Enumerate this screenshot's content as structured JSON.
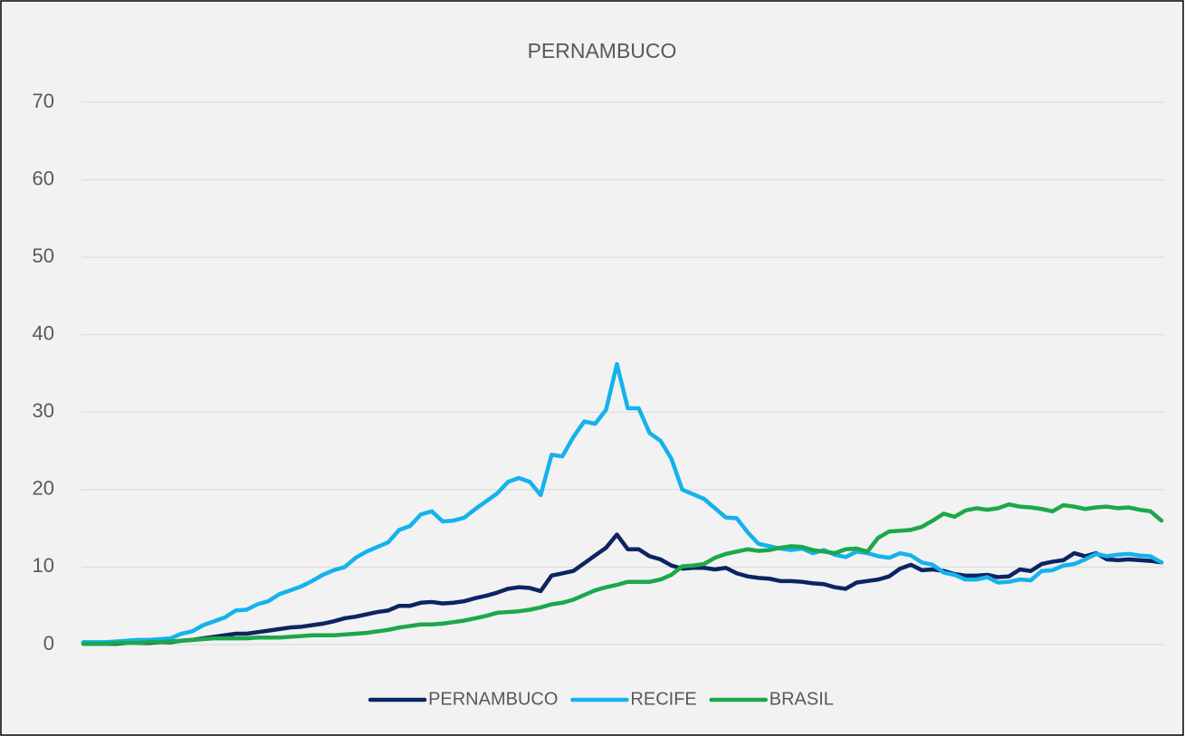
{
  "chart_data": {
    "type": "line",
    "title": "PERNAMBUCO",
    "categories": [
      null,
      null,
      null,
      null,
      null,
      null,
      null,
      null,
      null,
      null,
      null,
      null,
      null,
      null,
      null,
      null,
      null,
      null,
      null,
      null,
      null,
      null,
      null,
      null,
      null,
      null,
      null,
      null,
      null,
      null,
      null,
      null,
      null,
      null,
      null,
      null,
      null,
      null,
      null,
      null,
      null,
      null,
      null,
      null,
      null,
      null,
      null,
      null,
      null,
      null,
      null,
      null,
      null,
      null,
      null,
      null,
      null,
      null,
      null,
      null,
      null,
      null,
      null,
      null,
      null,
      null,
      null,
      null,
      null,
      null,
      null,
      null,
      null,
      null,
      null,
      null,
      null,
      null,
      null,
      null,
      null,
      null,
      null,
      null,
      null,
      null,
      null,
      null,
      null,
      null,
      null,
      null,
      null,
      null,
      null,
      null,
      null,
      null,
      null,
      null
    ],
    "series": [
      {
        "name": "PERNAMBUCO",
        "color": "#0c2462",
        "values": [
          0.1,
          0.1,
          0.1,
          0.1,
          0.2,
          0.2,
          0.2,
          0.3,
          0.3,
          0.5,
          0.6,
          0.8,
          1.0,
          1.2,
          1.4,
          1.4,
          1.6,
          1.8,
          2.0,
          2.2,
          2.3,
          2.5,
          2.7,
          3.0,
          3.4,
          3.6,
          3.9,
          4.2,
          4.4,
          5.0,
          5.0,
          5.4,
          5.5,
          5.3,
          5.4,
          5.6,
          6.0,
          6.3,
          6.7,
          7.2,
          7.4,
          7.3,
          6.9,
          8.9,
          9.2,
          9.5,
          10.5,
          11.5,
          12.5,
          14.2,
          12.3,
          12.3,
          11.4,
          11.0,
          10.2,
          9.8,
          9.9,
          9.9,
          9.7,
          9.9,
          9.2,
          8.8,
          8.6,
          8.5,
          8.2,
          8.2,
          8.1,
          7.9,
          7.8,
          7.4,
          7.2,
          8.0,
          8.2,
          8.4,
          8.8,
          9.8,
          10.3,
          9.6,
          9.7,
          9.5,
          9.1,
          8.9,
          8.9,
          9.0,
          8.7,
          8.8,
          9.7,
          9.5,
          10.4,
          10.7,
          10.9,
          11.8,
          11.4,
          11.8,
          11.0,
          10.9,
          11.0,
          10.9,
          10.8,
          10.6
        ]
      },
      {
        "name": "RECIFE",
        "color": "#15b2ec",
        "values": [
          0.3,
          0.3,
          0.3,
          0.4,
          0.5,
          0.6,
          0.6,
          0.7,
          0.8,
          1.4,
          1.7,
          2.5,
          3.0,
          3.5,
          4.4,
          4.5,
          5.2,
          5.6,
          6.5,
          7.0,
          7.5,
          8.2,
          9.0,
          9.6,
          10.0,
          11.2,
          12.0,
          12.6,
          13.2,
          14.8,
          15.3,
          16.8,
          17.2,
          15.9,
          16.0,
          16.4,
          17.5,
          18.5,
          19.5,
          21.0,
          21.5,
          21.0,
          19.3,
          24.5,
          24.3,
          26.8,
          28.8,
          28.5,
          30.3,
          36.2,
          30.5,
          30.5,
          27.3,
          26.3,
          24.0,
          20.0,
          19.4,
          18.8,
          17.6,
          16.4,
          16.3,
          14.5,
          13.0,
          12.7,
          12.4,
          12.2,
          12.4,
          11.8,
          12.2,
          11.6,
          11.3,
          12.0,
          11.8,
          11.4,
          11.2,
          11.8,
          11.5,
          10.6,
          10.3,
          9.3,
          9.0,
          8.4,
          8.4,
          8.7,
          8.0,
          8.1,
          8.4,
          8.3,
          9.5,
          9.6,
          10.2,
          10.4,
          11.0,
          11.7,
          11.4,
          11.6,
          11.7,
          11.5,
          11.4,
          10.6
        ]
      },
      {
        "name": "BRASIL",
        "color": "#1ba84a",
        "values": [
          0.1,
          0.1,
          0.1,
          0.2,
          0.2,
          0.2,
          0.3,
          0.3,
          0.4,
          0.5,
          0.6,
          0.7,
          0.8,
          0.8,
          0.8,
          0.8,
          0.9,
          0.9,
          0.9,
          1.0,
          1.1,
          1.2,
          1.2,
          1.2,
          1.3,
          1.4,
          1.5,
          1.7,
          1.9,
          2.2,
          2.4,
          2.6,
          2.6,
          2.7,
          2.9,
          3.1,
          3.4,
          3.7,
          4.1,
          4.2,
          4.3,
          4.5,
          4.8,
          5.2,
          5.4,
          5.8,
          6.4,
          7.0,
          7.4,
          7.7,
          8.1,
          8.1,
          8.1,
          8.4,
          9.0,
          10.1,
          10.2,
          10.4,
          11.2,
          11.7,
          12.0,
          12.3,
          12.1,
          12.2,
          12.5,
          12.7,
          12.6,
          12.2,
          12.0,
          11.8,
          12.3,
          12.4,
          12.0,
          13.8,
          14.6,
          14.7,
          14.8,
          15.2,
          16.0,
          16.9,
          16.5,
          17.3,
          17.6,
          17.4,
          17.6,
          18.1,
          17.8,
          17.7,
          17.5,
          17.2,
          18.0,
          17.8,
          17.5,
          17.7,
          17.8,
          17.6,
          17.7,
          17.4,
          17.2,
          16.0
        ]
      }
    ],
    "ylim": [
      0,
      70
    ],
    "yticks": [
      0,
      10,
      20,
      30,
      40,
      50,
      60,
      70
    ],
    "grid": true,
    "legend": "bottom"
  }
}
